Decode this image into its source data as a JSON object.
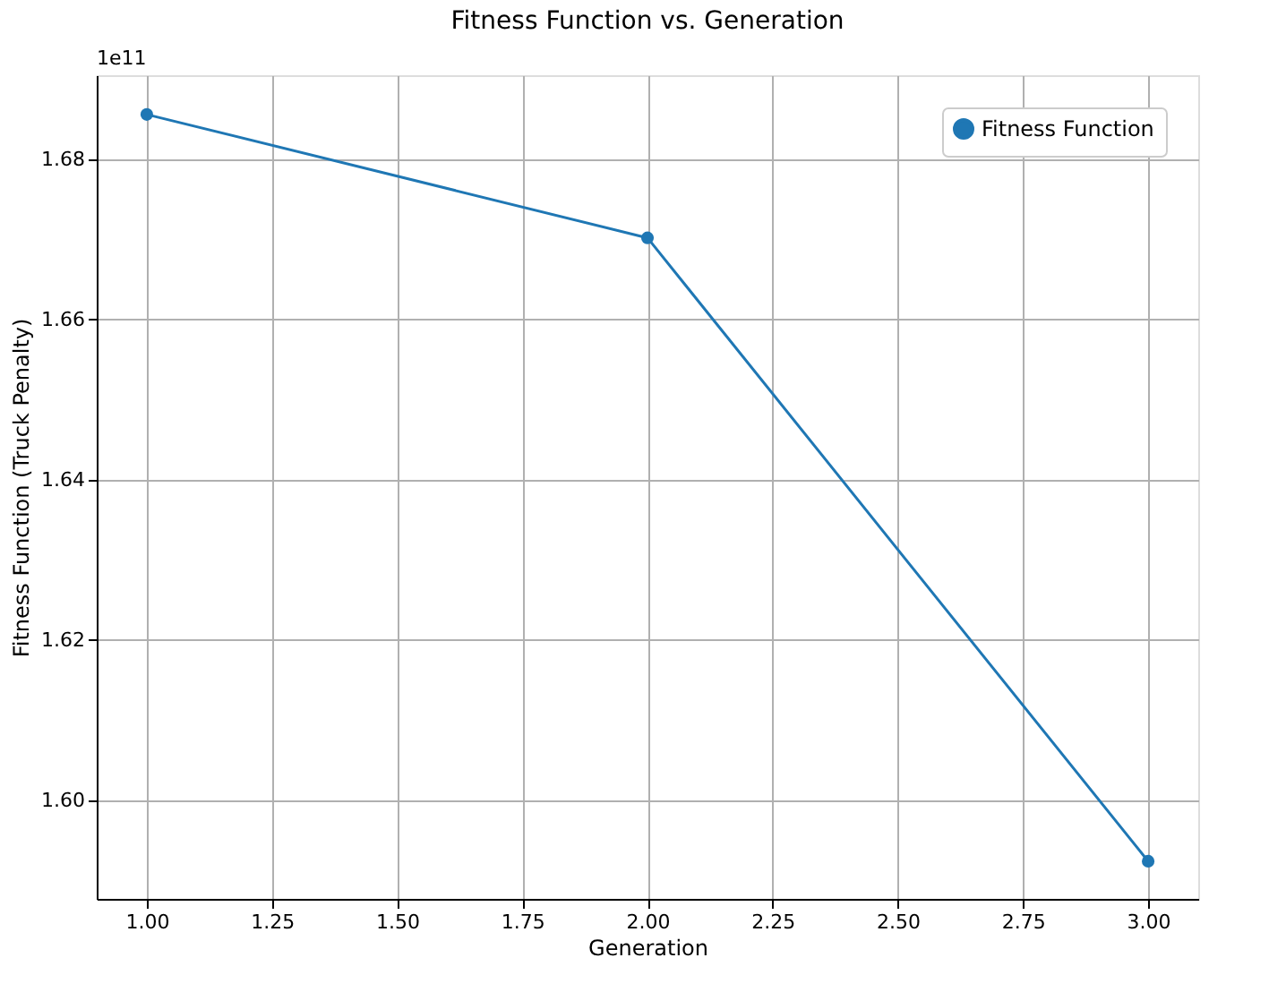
{
  "chart_data": {
    "type": "line",
    "title": "Fitness Function vs. Generation",
    "xlabel": "Generation",
    "ylabel": "Fitness Function (Truck Penalty)",
    "x": [
      1,
      2,
      3
    ],
    "series": [
      {
        "name": "Fitness Function",
        "color": "#1f77b4",
        "values": [
          1.6856,
          1.6702,
          1.5924
        ]
      }
    ],
    "xlim": [
      0.9,
      3.1
    ],
    "xticks": [
      {
        "value": 1.0,
        "label": "1.00"
      },
      {
        "value": 1.25,
        "label": "1.25"
      },
      {
        "value": 1.5,
        "label": "1.50"
      },
      {
        "value": 1.75,
        "label": "1.75"
      },
      {
        "value": 2.0,
        "label": "2.00"
      },
      {
        "value": 2.25,
        "label": "2.25"
      },
      {
        "value": 2.5,
        "label": "2.50"
      },
      {
        "value": 2.75,
        "label": "2.75"
      },
      {
        "value": 3.0,
        "label": "3.00"
      }
    ],
    "ylim": [
      1.5877,
      1.6905
    ],
    "yticks": [
      {
        "value": 1.6,
        "label": "1.60"
      },
      {
        "value": 1.62,
        "label": "1.62"
      },
      {
        "value": 1.64,
        "label": "1.64"
      },
      {
        "value": 1.66,
        "label": "1.66"
      },
      {
        "value": 1.68,
        "label": "1.68"
      }
    ],
    "annotations": [
      "1e11"
    ],
    "grid": true,
    "legend": "top right",
    "marker": "circle",
    "line_style": "solid"
  }
}
